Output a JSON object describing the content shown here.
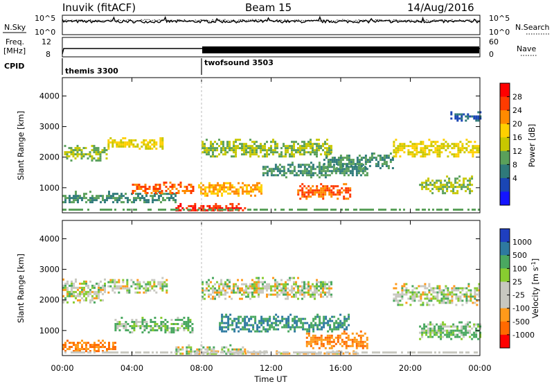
{
  "header": {
    "station": "Inuvik (fitACF)",
    "beam": "Beam 15",
    "date": "14/Aug/2016"
  },
  "strip": {
    "nsky_label": "N.Sky",
    "nsky_ticks": [
      "10^5",
      "10^0"
    ],
    "nsearch_label": "N.Search",
    "nsearch_ticks": [
      "10^5",
      "10^0"
    ],
    "freq_label_line1": "Freq.",
    "freq_label_line2": "[MHz]",
    "freq_ticks": [
      "12",
      "8"
    ],
    "nave_label": "Nave",
    "nave_ticks": [
      "60",
      "0"
    ],
    "cpid_label": "CPID",
    "cpid_segments": [
      {
        "name": "themis 3300",
        "start_hour": 0.0
      },
      {
        "name": "twofsound 3503",
        "start_hour": 8.0
      }
    ]
  },
  "axes": {
    "xlabel": "Time UT",
    "x_ticks": [
      "00:00",
      "04:00",
      "08:00",
      "12:00",
      "16:00",
      "20:00",
      "00:00"
    ],
    "x_tick_hours": [
      0,
      4,
      8,
      12,
      16,
      20,
      24
    ],
    "ylabel": "Slant Range [km]",
    "y_ticks": [
      "1000",
      "2000",
      "3000",
      "4000"
    ],
    "y_tick_values": [
      1000,
      2000,
      3000,
      4000
    ],
    "ylim": [
      180,
      4600
    ]
  },
  "colorbars": {
    "power": {
      "label": "Power [dB]",
      "ticks": [
        "28",
        "24",
        "20",
        "16",
        "12",
        "8",
        "4"
      ],
      "colors": [
        "#ff0000",
        "#ff3b00",
        "#ff8a00",
        "#ffd000",
        "#c8c800",
        "#5aa05a",
        "#2f7a7a",
        "#1a46b4",
        "#1414ff"
      ]
    },
    "velocity": {
      "label_main": "Velocity [m s",
      "label_sup": "-1",
      "label_end": "]",
      "ticks": [
        "1000",
        "500",
        "100",
        "25",
        "-25",
        "-100",
        "-500",
        "-1000"
      ],
      "colors": [
        "#1f3fc0",
        "#2e7aa0",
        "#4aa860",
        "#88cc30",
        "#c8c8c0",
        "#c8c8c0",
        "#ff9a1a",
        "#ff6a00",
        "#ff0000"
      ]
    }
  },
  "chart_data": [
    {
      "type": "heatmap",
      "panel": "power",
      "x_unit": "hour UT",
      "y_unit": "km",
      "x_range": [
        0,
        24
      ],
      "y_range": [
        180,
        4600
      ],
      "scatter_blobs": [
        {
          "x_start": 0.1,
          "x_end": 2.5,
          "y_center": 2150,
          "y_half": 250,
          "level": 12
        },
        {
          "x_start": 2.6,
          "x_end": 5.8,
          "y_center": 2450,
          "y_half": 200,
          "level": 16
        },
        {
          "x_start": 0.0,
          "x_end": 6.5,
          "y_center": 700,
          "y_half": 200,
          "level": 8
        },
        {
          "x_start": 4.0,
          "x_end": 7.5,
          "y_center": 1000,
          "y_half": 200,
          "level": 24
        },
        {
          "x_start": 6.5,
          "x_end": 10.5,
          "y_center": 350,
          "y_half": 150,
          "level": 28
        },
        {
          "x_start": 7.8,
          "x_end": 11.5,
          "y_center": 1000,
          "y_half": 250,
          "level": 20
        },
        {
          "x_start": 8.0,
          "x_end": 15.5,
          "y_center": 2300,
          "y_half": 300,
          "level": 12
        },
        {
          "x_start": 11.5,
          "x_end": 17.5,
          "y_center": 1600,
          "y_half": 250,
          "level": 8
        },
        {
          "x_start": 13.5,
          "x_end": 16.5,
          "y_center": 900,
          "y_half": 250,
          "level": 24
        },
        {
          "x_start": 15.0,
          "x_end": 19.0,
          "y_center": 1900,
          "y_half": 250,
          "level": 8
        },
        {
          "x_start": 19.0,
          "x_end": 24.0,
          "y_center": 2300,
          "y_half": 300,
          "level": 16
        },
        {
          "x_start": 20.5,
          "x_end": 23.5,
          "y_center": 1100,
          "y_half": 300,
          "level": 12
        },
        {
          "x_start": 22.3,
          "x_end": 24.0,
          "y_center": 3350,
          "y_half": 150,
          "level": 4
        }
      ]
    },
    {
      "type": "heatmap",
      "panel": "velocity",
      "x_unit": "hour UT",
      "y_unit": "km",
      "x_range": [
        0,
        24
      ],
      "y_range": [
        180,
        4600
      ],
      "scatter_blobs": [
        {
          "x_start": 0.0,
          "x_end": 2.5,
          "y_center": 2300,
          "y_half": 400,
          "level": 0
        },
        {
          "x_start": 2.6,
          "x_end": 6.0,
          "y_center": 2500,
          "y_half": 250,
          "level": 0
        },
        {
          "x_start": 0.0,
          "x_end": 3.0,
          "y_center": 500,
          "y_half": 200,
          "level": -500
        },
        {
          "x_start": 3.0,
          "x_end": 7.5,
          "y_center": 1200,
          "y_half": 250,
          "level": 100
        },
        {
          "x_start": 6.5,
          "x_end": 10.5,
          "y_center": 350,
          "y_half": 200,
          "level": 0
        },
        {
          "x_start": 8.0,
          "x_end": 15.5,
          "y_center": 2400,
          "y_half": 350,
          "level": 0
        },
        {
          "x_start": 9.0,
          "x_end": 16.5,
          "y_center": 1250,
          "y_half": 300,
          "level": 500
        },
        {
          "x_start": 14.0,
          "x_end": 17.5,
          "y_center": 700,
          "y_half": 300,
          "level": -500
        },
        {
          "x_start": 10.0,
          "x_end": 17.0,
          "y_center": 250,
          "y_half": 100,
          "level": -100
        },
        {
          "x_start": 19.0,
          "x_end": 24.0,
          "y_center": 2200,
          "y_half": 350,
          "level": 0
        },
        {
          "x_start": 20.5,
          "x_end": 24.0,
          "y_center": 1000,
          "y_half": 300,
          "level": 100
        }
      ]
    }
  ]
}
